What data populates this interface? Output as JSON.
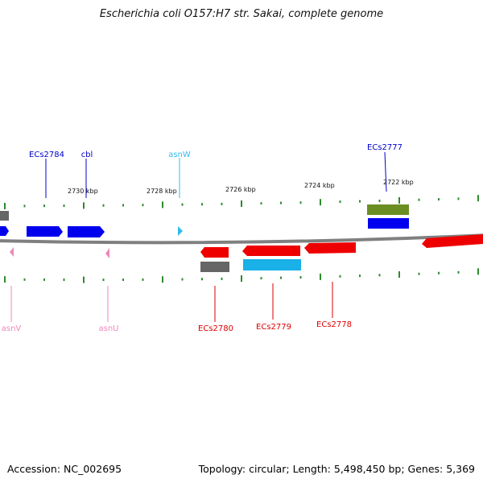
{
  "title": "Escherichia coli O157:H7 str. Sakai, complete genome",
  "footer": {
    "accession": "Accession: NC_002695",
    "summary": "Topology: circular; Length: 5,498,450 bp; Genes: 5,369"
  },
  "scale": {
    "ticks": [
      "2730 kbp",
      "2728 kbp",
      "2726 kbp",
      "2724 kbp",
      "2722 kbp"
    ]
  },
  "genes": [
    {
      "name": "ECs2784",
      "color": "#0000cc"
    },
    {
      "name": "cbl",
      "color": "#0000cc"
    },
    {
      "name": "asnW",
      "color": "#33bbee"
    },
    {
      "name": "ECs2777",
      "color": "#0000cc"
    },
    {
      "name": "asnV",
      "color": "#ee88bb"
    },
    {
      "name": "asnU",
      "color": "#ee88bb"
    },
    {
      "name": "ECs2780",
      "color": "#dd0000"
    },
    {
      "name": "ECs2779",
      "color": "#dd0000"
    },
    {
      "name": "ECs2778",
      "color": "#dd0000"
    }
  ],
  "colors": {
    "backbone": "#808080",
    "tick": "#2e8b2e",
    "forward_gene": "#0000ee",
    "reverse_gene": "#ee0000",
    "trna_forward": "#33bbee",
    "trna_reverse": "#ee88bb",
    "olive_feature": "#6b8e23",
    "grey_feature": "#666666",
    "cyan_feature": "#1ab0e8"
  }
}
